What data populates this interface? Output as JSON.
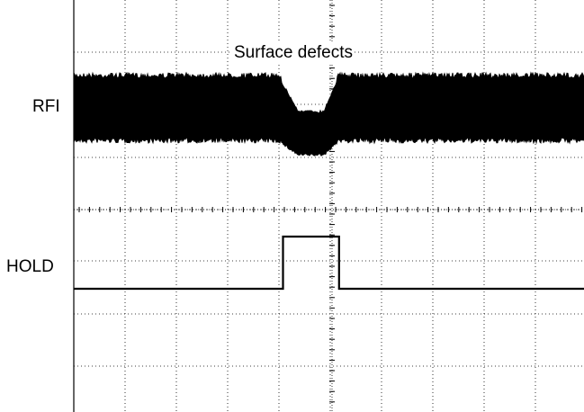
{
  "chart_data": {
    "type": "line",
    "title": "Surface defects",
    "xlabel": "",
    "ylabel": "",
    "grid": true,
    "series": [
      {
        "name": "RFI",
        "description_points": [
          [
            0.0,
            1.0
          ],
          [
            0.4,
            1.0
          ],
          [
            0.44,
            0.7
          ],
          [
            0.49,
            0.7
          ],
          [
            0.52,
            1.0
          ],
          [
            1.0,
            1.0
          ]
        ]
      },
      {
        "name": "HOLD",
        "points": [
          [
            0.0,
            0
          ],
          [
            0.41,
            0
          ],
          [
            0.41,
            1
          ],
          [
            0.52,
            1
          ],
          [
            0.52,
            0
          ],
          [
            1.0,
            0
          ]
        ]
      }
    ]
  },
  "labels": {
    "title": "Surface defects",
    "rfi": "RFI",
    "hold": "HOLD"
  },
  "colors": {
    "trace": "#000000",
    "grid": "#000000",
    "background": "#ffffff"
  }
}
